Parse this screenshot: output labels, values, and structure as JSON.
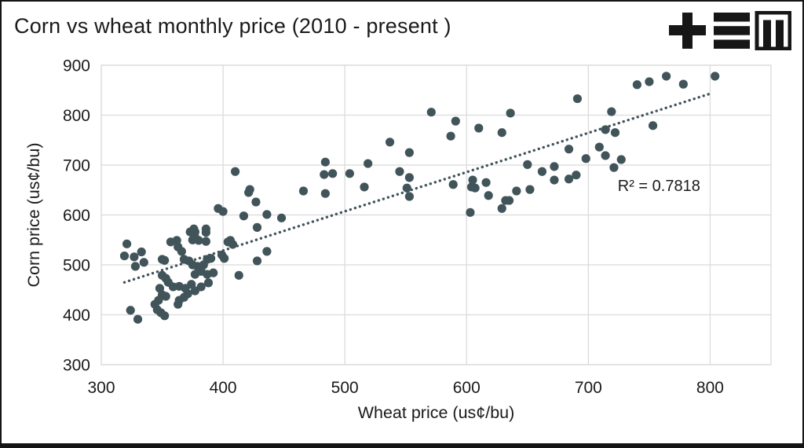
{
  "logo": {
    "icon": "tem-logo"
  },
  "chart_data": {
    "type": "scatter",
    "title": "Corn vs wheat monthly price (2010 - present )",
    "xlabel": "Wheat price (us¢/bu)",
    "ylabel": "Corn price (us¢/bu)",
    "xlim": [
      300,
      850
    ],
    "ylim": [
      300,
      900
    ],
    "xticks": [
      300,
      400,
      500,
      600,
      700,
      800
    ],
    "yticks": [
      300,
      400,
      500,
      600,
      700,
      800,
      900
    ],
    "grid": true,
    "legend": "none",
    "point_color": "#41545A",
    "grid_color": "#DBDBDB",
    "text_color": "#1A1A1A",
    "annotation": {
      "text": "R² = 0.7818",
      "x": 758,
      "y": 659
    },
    "trendline": {
      "style": "dotted",
      "x1": 319,
      "y1": 465,
      "x2": 800,
      "y2": 843
    },
    "points": [
      [
        319,
        518
      ],
      [
        321,
        542
      ],
      [
        324,
        409
      ],
      [
        327,
        516
      ],
      [
        328,
        497
      ],
      [
        330,
        391
      ],
      [
        333,
        526
      ],
      [
        335,
        505
      ],
      [
        344,
        421
      ],
      [
        346,
        410
      ],
      [
        347,
        429
      ],
      [
        348,
        453
      ],
      [
        349,
        404
      ],
      [
        350,
        440
      ],
      [
        350,
        511
      ],
      [
        350,
        479
      ],
      [
        352,
        398
      ],
      [
        352,
        509
      ],
      [
        353,
        437
      ],
      [
        353,
        473
      ],
      [
        355,
        465
      ],
      [
        357,
        546
      ],
      [
        359,
        456
      ],
      [
        362,
        549
      ],
      [
        363,
        421
      ],
      [
        363,
        536
      ],
      [
        364,
        457
      ],
      [
        364,
        429
      ],
      [
        366,
        527
      ],
      [
        368,
        435
      ],
      [
        368,
        511
      ],
      [
        369,
        453
      ],
      [
        371,
        442
      ],
      [
        372,
        508
      ],
      [
        373,
        566
      ],
      [
        374,
        461
      ],
      [
        375,
        568
      ],
      [
        375,
        550
      ],
      [
        375,
        500
      ],
      [
        376,
        572
      ],
      [
        377,
        566
      ],
      [
        377,
        555
      ],
      [
        377,
        481
      ],
      [
        377,
        448
      ],
      [
        379,
        497
      ],
      [
        380,
        549
      ],
      [
        382,
        487
      ],
      [
        382,
        456
      ],
      [
        384,
        500
      ],
      [
        386,
        565
      ],
      [
        386,
        547
      ],
      [
        386,
        572
      ],
      [
        387,
        511
      ],
      [
        387,
        481
      ],
      [
        388,
        464
      ],
      [
        390,
        513
      ],
      [
        392,
        484
      ],
      [
        396,
        613
      ],
      [
        399,
        520
      ],
      [
        400,
        607
      ],
      [
        401,
        513
      ],
      [
        404,
        546
      ],
      [
        406,
        549
      ],
      [
        408,
        541
      ],
      [
        410,
        687
      ],
      [
        413,
        479
      ],
      [
        417,
        598
      ],
      [
        421,
        645
      ],
      [
        422,
        651
      ],
      [
        427,
        626
      ],
      [
        428,
        575
      ],
      [
        428,
        508
      ],
      [
        436,
        601
      ],
      [
        436,
        527
      ],
      [
        448,
        594
      ],
      [
        466,
        648
      ],
      [
        483,
        681
      ],
      [
        484,
        706
      ],
      [
        484,
        643
      ],
      [
        490,
        683
      ],
      [
        504,
        683
      ],
      [
        516,
        656
      ],
      [
        519,
        703
      ],
      [
        537,
        746
      ],
      [
        545,
        687
      ],
      [
        551,
        654
      ],
      [
        553,
        725
      ],
      [
        553,
        675
      ],
      [
        553,
        637
      ],
      [
        571,
        806
      ],
      [
        587,
        758
      ],
      [
        589,
        661
      ],
      [
        591,
        788
      ],
      [
        603,
        605
      ],
      [
        604,
        656
      ],
      [
        605,
        670
      ],
      [
        607,
        654
      ],
      [
        610,
        774
      ],
      [
        616,
        665
      ],
      [
        618,
        639
      ],
      [
        629,
        765
      ],
      [
        629,
        613
      ],
      [
        632,
        629
      ],
      [
        635,
        629
      ],
      [
        636,
        804
      ],
      [
        641,
        648
      ],
      [
        650,
        701
      ],
      [
        652,
        651
      ],
      [
        662,
        687
      ],
      [
        672,
        697
      ],
      [
        672,
        670
      ],
      [
        684,
        672
      ],
      [
        684,
        732
      ],
      [
        690,
        680
      ],
      [
        691,
        833
      ],
      [
        698,
        713
      ],
      [
        709,
        736
      ],
      [
        714,
        771
      ],
      [
        714,
        719
      ],
      [
        719,
        807
      ],
      [
        721,
        695
      ],
      [
        722,
        765
      ],
      [
        727,
        711
      ],
      [
        740,
        861
      ],
      [
        750,
        867
      ],
      [
        753,
        779
      ],
      [
        764,
        878
      ],
      [
        778,
        862
      ],
      [
        804,
        878
      ]
    ]
  }
}
